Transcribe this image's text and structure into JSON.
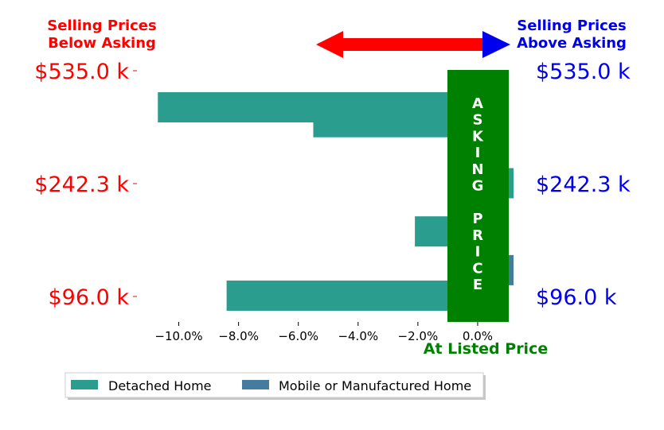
{
  "header": {
    "below_line1": "Selling Prices",
    "below_line2": "Below Asking",
    "above_line1": "Selling Prices",
    "above_line2": "Above Asking"
  },
  "asking_banner": "ASKING PRICE",
  "at_listed_label": "At Listed Price",
  "colors": {
    "below": "#ff0000",
    "above": "#0000ee",
    "banner": "#008000",
    "detached": "#2a9d8f",
    "mobile": "#457b9d"
  },
  "chart_data": {
    "type": "bar",
    "orientation": "horizontal",
    "categories": [
      "$535.0 k",
      "$242.3 k",
      "$96.0 k"
    ],
    "x_axis": {
      "ticks": [
        "−10.0%",
        "−8.0%",
        "−6.0%",
        "−4.0%",
        "−2.0%",
        "0.0%"
      ],
      "tick_values": [
        -10,
        -8,
        -6,
        -4,
        -2,
        0
      ],
      "xlim": [
        -11,
        1.2
      ]
    },
    "series": [
      {
        "name": "Detached Home",
        "color": "#2a9d8f",
        "values": [
          {
            "y": 535.0,
            "x": -10.7
          },
          {
            "y": 400.0,
            "x": -5.5
          },
          {
            "y": 242.3,
            "x": 1.2
          },
          {
            "y": 180.0,
            "x": -2.1
          },
          {
            "y": 96.0,
            "x": -8.4
          }
        ]
      },
      {
        "name": "Mobile or Manufactured Home",
        "color": "#457b9d",
        "values": [
          {
            "y": 130.0,
            "x": 1.2
          }
        ]
      }
    ],
    "y_ticks": [
      535.0,
      242.3,
      96.0
    ],
    "legend": {
      "placement": "bottom-left",
      "entries": [
        "Detached Home",
        "Mobile or Manufactured Home"
      ]
    }
  }
}
